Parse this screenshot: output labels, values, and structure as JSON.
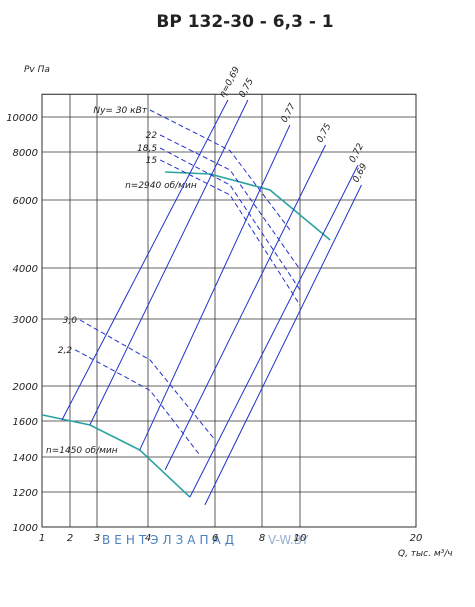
{
  "chart_data": {
    "type": "line",
    "title": "ВР 132-30 - 6,3 - 1",
    "y_label": "Pv Па",
    "x_label": "Q, тыс. м³/ч",
    "xlim": [
      1,
      20
    ],
    "ylim": [
      1000,
      11300
    ],
    "xticks": [
      1,
      2,
      3,
      4,
      6,
      8,
      10,
      20
    ],
    "yticks": [
      1000,
      1200,
      1400,
      1600,
      2000,
      3000,
      4000,
      6000,
      8000,
      10000
    ],
    "grid": true,
    "series": [
      {
        "name": "n=2940 об/мин",
        "color": "#2aa3a0",
        "x": [
          4.51,
          5.85,
          8.42,
          12.6
        ],
        "values": [
          7167,
          7083,
          6417,
          4824
        ]
      },
      {
        "name": "n=1450 об/мин",
        "color": "#2aa3a0",
        "x": [
          1,
          2.74,
          3.84,
          5.25
        ],
        "values": [
          1670,
          1578,
          1439,
          1171
        ]
      }
    ],
    "efficiency_lines": [
      {
        "name": "η=0,69",
        "color": "#2233cc",
        "x": [
          1.71,
          6.55
        ],
        "values": [
          1610,
          10970
        ]
      },
      {
        "name": "0,75",
        "color": "#2233cc",
        "x": [
          2.74,
          7.4
        ],
        "values": [
          1580,
          10970
        ]
      },
      {
        "name": "0,77",
        "color": "#2233cc",
        "x": [
          3.84,
          9.47
        ],
        "values": [
          1440,
          9540
        ]
      },
      {
        "name": "0,75",
        "color": "#2233cc",
        "x": [
          4.51,
          12.2
        ],
        "values": [
          1326,
          8400
        ]
      },
      {
        "name": "0,72",
        "color": "#2233cc",
        "x": [
          5.25,
          15
        ],
        "values": [
          1171,
          7460
        ]
      },
      {
        "name": "0,69",
        "color": "#2233cc",
        "x": [
          5.7,
          15.3
        ],
        "values": [
          1126,
          6625
        ]
      }
    ],
    "power_curves": [
      {
        "name": "Ny= 30 кВт",
        "color": "#2233cc",
        "x": [
          4.06,
          6.64,
          9.47
        ],
        "values": [
          10400,
          8080,
          5120
        ]
      },
      {
        "name": "22",
        "color": "#2233cc",
        "x": [
          4.36,
          6.64,
          10
        ],
        "values": [
          8970,
          7250,
          3970
        ]
      },
      {
        "name": "18,5",
        "color": "#2233cc",
        "x": [
          4.36,
          6.64,
          10
        ],
        "values": [
          8230,
          6625,
          3570
        ]
      },
      {
        "name": "15",
        "color": "#2233cc",
        "x": [
          4.36,
          6.64,
          10
        ],
        "values": [
          7670,
          6210,
          3270
        ]
      },
      {
        "name": "3,0",
        "color": "#2233cc",
        "x": [
          2.37,
          4.06,
          6
        ],
        "values": [
          2985,
          2390,
          1495
        ]
      },
      {
        "name": "2,2",
        "color": "#2233cc",
        "x": [
          2.19,
          4.06,
          5.55
        ],
        "values": [
          2540,
          1950,
          1410
        ]
      }
    ]
  },
  "watermark": [
    "ВЕНТЭЛЗАПАД",
    "V-W.BY"
  ]
}
